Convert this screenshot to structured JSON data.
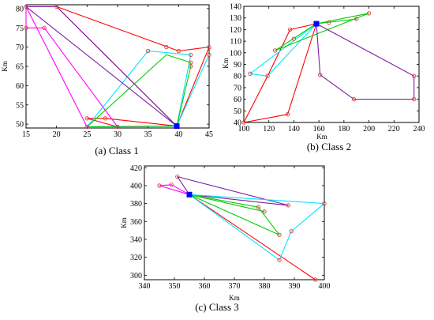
{
  "chart_data": [
    {
      "type": "line",
      "caption": "(a) Class 1",
      "xlabel": "",
      "ylabel": "Km",
      "xlim": [
        15,
        45
      ],
      "ylim": [
        49,
        81
      ],
      "xticks": [
        15,
        20,
        25,
        30,
        35,
        40,
        45
      ],
      "yticks": [
        50,
        55,
        60,
        65,
        70,
        75,
        80
      ],
      "depot": [
        39.7,
        49.5
      ],
      "routes": [
        {
          "color": "#ff0000",
          "points": [
            [
              39.7,
              49.5
            ],
            [
              20,
              80.5
            ],
            [
              40,
              69
            ],
            [
              45,
              70
            ],
            [
              39.7,
              49.5
            ]
          ]
        },
        {
          "color": "#ff0000",
          "points": [
            [
              39.7,
              49.5
            ],
            [
              28,
              51.5
            ],
            [
              25,
              51.5
            ],
            [
              30,
              49.3
            ],
            [
              39.7,
              49.5
            ]
          ]
        },
        {
          "color": "#ff00ff",
          "points": [
            [
              39.7,
              49.5
            ],
            [
              25,
              49.3
            ],
            [
              15,
              80.5
            ],
            [
              15,
              75
            ],
            [
              18,
              75
            ],
            [
              30,
              49.3
            ],
            [
              39.7,
              49.5
            ]
          ]
        },
        {
          "color": "#00e5ff",
          "points": [
            [
              39.7,
              49.5
            ],
            [
              25,
              49.3
            ],
            [
              35,
              69
            ],
            [
              42,
              68
            ],
            [
              39.7,
              49.5
            ]
          ]
        },
        {
          "color": "#00e5ff",
          "points": [
            [
              39.7,
              49.5
            ],
            [
              45,
              68
            ],
            [
              39.7,
              49.5
            ]
          ]
        },
        {
          "color": "#00cc00",
          "points": [
            [
              39.7,
              49.5
            ],
            [
              25,
              49.3
            ],
            [
              38,
              68
            ],
            [
              42,
              66
            ],
            [
              42,
              65
            ],
            [
              39.7,
              49.5
            ]
          ]
        },
        {
          "color": "#7b1fa2",
          "points": [
            [
              39.7,
              49.5
            ],
            [
              15,
              80.5
            ],
            [
              20,
              80.5
            ],
            [
              39.7,
              49.5
            ]
          ]
        }
      ],
      "customers": [
        [
          15,
          80.5
        ],
        [
          20,
          80.5
        ],
        [
          15,
          75
        ],
        [
          18,
          75
        ],
        [
          35,
          69
        ],
        [
          38,
          70
        ],
        [
          40,
          69
        ],
        [
          42,
          68
        ],
        [
          45,
          70
        ],
        [
          45,
          68
        ],
        [
          42,
          66
        ],
        [
          42,
          65
        ],
        [
          28,
          51.5
        ],
        [
          25,
          51.5
        ],
        [
          25,
          49.3
        ],
        [
          30,
          49.3
        ]
      ]
    },
    {
      "type": "line",
      "caption": "(b) Class 2",
      "xlabel": "Km",
      "ylabel": "Km",
      "xlim": [
        100,
        240
      ],
      "ylim": [
        40,
        140
      ],
      "xticks": [
        100,
        120,
        140,
        160,
        180,
        200,
        220,
        240
      ],
      "yticks": [
        40,
        50,
        60,
        70,
        80,
        90,
        100,
        110,
        120,
        130,
        140
      ],
      "depot": [
        158,
        125
      ],
      "routes": [
        {
          "color": "#ff0000",
          "points": [
            [
              158,
              125
            ],
            [
              137,
              120
            ],
            [
              119,
              80
            ],
            [
              100,
              40
            ],
            [
              135,
              47
            ],
            [
              158,
              125
            ]
          ]
        },
        {
          "color": "#00e5ff",
          "points": [
            [
              158,
              125
            ],
            [
              105,
              82
            ],
            [
              119,
              80
            ],
            [
              158,
              125
            ]
          ]
        },
        {
          "color": "#00cc00",
          "points": [
            [
              158,
              125
            ],
            [
              125,
              102
            ],
            [
              200,
              134
            ],
            [
              158,
              125
            ]
          ]
        },
        {
          "color": "#00cc00",
          "points": [
            [
              158,
              125
            ],
            [
              190,
              129
            ],
            [
              158,
              125
            ]
          ]
        },
        {
          "color": "#7b1fa2",
          "points": [
            [
              158,
              125
            ],
            [
              236,
              80
            ],
            [
              236,
              60
            ],
            [
              188,
              60
            ],
            [
              161,
              81
            ],
            [
              158,
              125
            ]
          ]
        }
      ],
      "customers": [
        [
          100,
          40
        ],
        [
          105,
          82
        ],
        [
          119,
          80
        ],
        [
          125,
          102
        ],
        [
          137,
          120
        ],
        [
          135,
          47
        ],
        [
          140,
          112
        ],
        [
          161,
          81
        ],
        [
          168,
          126
        ],
        [
          188,
          60
        ],
        [
          190,
          129
        ],
        [
          200,
          134
        ],
        [
          236,
          80
        ],
        [
          236,
          60
        ]
      ]
    },
    {
      "type": "line",
      "caption": "(c) Class 3",
      "xlabel": "Km",
      "ylabel": "Km",
      "xlim": [
        340,
        400
      ],
      "ylim": [
        295,
        422
      ],
      "xticks": [
        340,
        350,
        360,
        370,
        380,
        390,
        400
      ],
      "yticks": [
        300,
        320,
        340,
        360,
        380,
        400,
        420
      ],
      "depot": [
        355,
        390
      ],
      "routes": [
        {
          "color": "#ff0000",
          "points": [
            [
              355,
              390
            ],
            [
              397,
              295
            ],
            [
              355,
              390
            ]
          ]
        },
        {
          "color": "#ff00ff",
          "points": [
            [
              355,
              390
            ],
            [
              345,
              400
            ],
            [
              349,
              401
            ],
            [
              355,
              390
            ]
          ]
        },
        {
          "color": "#7b1fa2",
          "points": [
            [
              355,
              390
            ],
            [
              351,
              410
            ],
            [
              388,
              378
            ],
            [
              355,
              390
            ]
          ]
        },
        {
          "color": "#00cc00",
          "points": [
            [
              355,
              390
            ],
            [
              378,
              376
            ],
            [
              385,
              345
            ],
            [
              355,
              390
            ]
          ]
        },
        {
          "color": "#00cc00",
          "points": [
            [
              355,
              390
            ],
            [
              380,
              371
            ],
            [
              355,
              390
            ]
          ]
        },
        {
          "color": "#00e5ff",
          "points": [
            [
              355,
              390
            ],
            [
              400,
              380
            ],
            [
              389,
              349
            ],
            [
              385,
              317
            ],
            [
              355,
              390
            ]
          ]
        }
      ],
      "customers": [
        [
          345,
          400
        ],
        [
          349,
          401
        ],
        [
          351,
          410
        ],
        [
          378,
          376
        ],
        [
          380,
          371
        ],
        [
          385,
          345
        ],
        [
          385,
          317
        ],
        [
          388,
          378
        ],
        [
          389,
          349
        ],
        [
          397,
          295
        ],
        [
          400,
          380
        ]
      ]
    }
  ]
}
